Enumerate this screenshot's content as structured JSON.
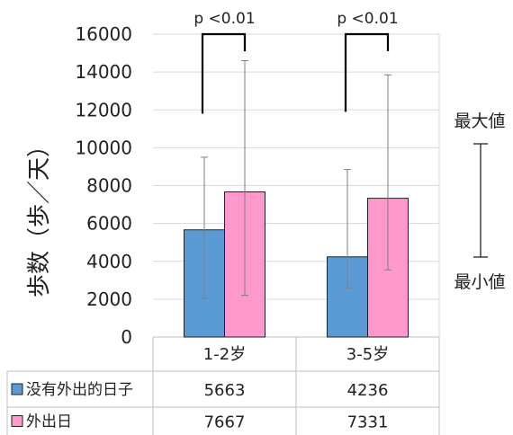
{
  "chart_data": {
    "type": "bar",
    "categories": [
      "1-2岁",
      "3-5岁"
    ],
    "series": [
      {
        "name": "没有外出的日子",
        "color": "#5b9bd5",
        "values": [
          5663,
          4236
        ],
        "err_min": [
          2050,
          2600
        ],
        "err_max": [
          9500,
          8850
        ]
      },
      {
        "name": "外出日",
        "color": "#ff99cc",
        "values": [
          7667,
          7331
        ],
        "err_min": [
          2200,
          3550
        ],
        "err_max": [
          14600,
          13850
        ]
      }
    ],
    "ylabel": "歩数（歩／天）",
    "ylim": [
      0,
      16000
    ],
    "yticks": [
      0,
      2000,
      4000,
      6000,
      8000,
      10000,
      12000,
      14000,
      16000
    ],
    "grid": true,
    "significance": [
      {
        "category": "1-2岁",
        "label": "p <0.01",
        "bracket_low": 11800,
        "bracket_high": 16000
      },
      {
        "category": "3-5岁",
        "label": "p <0.01",
        "bracket_low": 11900,
        "bracket_high": 16000
      }
    ],
    "errorbar_legend": {
      "max_label": "最大値",
      "min_label": "最小値"
    },
    "data_table": true
  }
}
